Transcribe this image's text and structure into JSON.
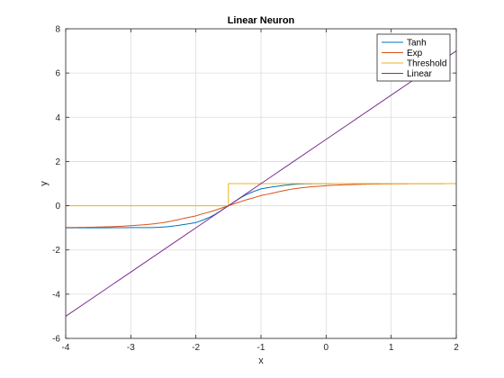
{
  "chart_data": {
    "type": "line",
    "title": "Linear Neuron",
    "xlabel": "x",
    "ylabel": "y",
    "xlim": [
      -4,
      2
    ],
    "ylim": [
      -6,
      8
    ],
    "xticks": [
      -4,
      -3,
      -2,
      -1,
      0,
      1,
      2
    ],
    "yticks": [
      -6,
      -4,
      -2,
      0,
      2,
      4,
      6,
      8
    ],
    "x_tick_labels": [
      "-4",
      "-3",
      "-2",
      "-1",
      "0",
      "1",
      "2"
    ],
    "y_tick_labels": [
      "-6",
      "-4",
      "-2",
      "0",
      "2",
      "4",
      "6",
      "8"
    ],
    "grid": true,
    "legend_position": "top-right",
    "x": [
      -4,
      -3.5,
      -3,
      -2.5,
      -2,
      -1.75,
      -1.5,
      -1.25,
      -1,
      -0.5,
      0,
      0.5,
      1,
      1.5,
      2
    ],
    "series": [
      {
        "name": "Tanh",
        "color": "#0072BD",
        "values": [
          -1.0,
          -0.999,
          -0.99,
          -0.964,
          -0.762,
          -0.462,
          0.0,
          0.462,
          0.762,
          0.964,
          0.995,
          0.999,
          1.0,
          1.0,
          1.0
        ]
      },
      {
        "name": "Exp",
        "color": "#D95319",
        "values": [
          -0.987,
          -0.964,
          -0.905,
          -0.762,
          -0.462,
          -0.245,
          0.0,
          0.245,
          0.462,
          0.762,
          0.905,
          0.964,
          0.987,
          0.995,
          0.998
        ]
      },
      {
        "name": "Threshold",
        "color": "#EDB120",
        "values": [
          0,
          0,
          0,
          0,
          0,
          0,
          1,
          1,
          1,
          1,
          1,
          1,
          1,
          1,
          1
        ]
      },
      {
        "name": "Linear",
        "color": "#7E2F8E",
        "values": [
          -5.0,
          -4.0,
          -3.0,
          -2.0,
          -1.0,
          -0.5,
          0.0,
          0.5,
          1.0,
          2.0,
          3.0,
          4.0,
          5.0,
          6.0,
          7.0
        ]
      }
    ]
  }
}
